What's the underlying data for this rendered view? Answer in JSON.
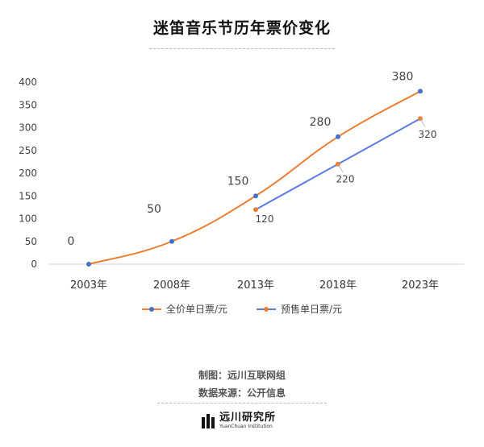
{
  "title": "迷笛音乐节历年票价变化",
  "chart_data": {
    "type": "line",
    "categories": [
      "2003年",
      "2008年",
      "2013年",
      "2018年",
      "2023年"
    ],
    "ylim": [
      0,
      400
    ],
    "yticks": [
      0,
      50,
      100,
      150,
      200,
      250,
      300,
      350,
      400
    ],
    "series": [
      {
        "name": "全价单日票/元",
        "values": [
          0,
          50,
          150,
          280,
          380
        ],
        "color": "#ED7D31",
        "marker_color": "#4472C4",
        "smooth": true
      },
      {
        "name": "预售单日票/元",
        "values": [
          null,
          null,
          120,
          220,
          320
        ],
        "color": "#5B7BE0",
        "marker_color": "#ED7D31",
        "smooth": false
      }
    ],
    "grid": false,
    "legend": "bottom"
  },
  "legend": {
    "items": [
      {
        "label": "全价单日票/元",
        "line_color": "#ED7D31",
        "dot_color": "#4472C4"
      },
      {
        "label": "预售单日票/元",
        "line_color": "#5B7BE0",
        "dot_color": "#ED7D31"
      }
    ]
  },
  "footer": {
    "producer": "制图：远川互联网组",
    "source": "数据来源：公开信息",
    "logo_name": "远川研究所",
    "logo_sub": "YuanChuan Institution"
  }
}
